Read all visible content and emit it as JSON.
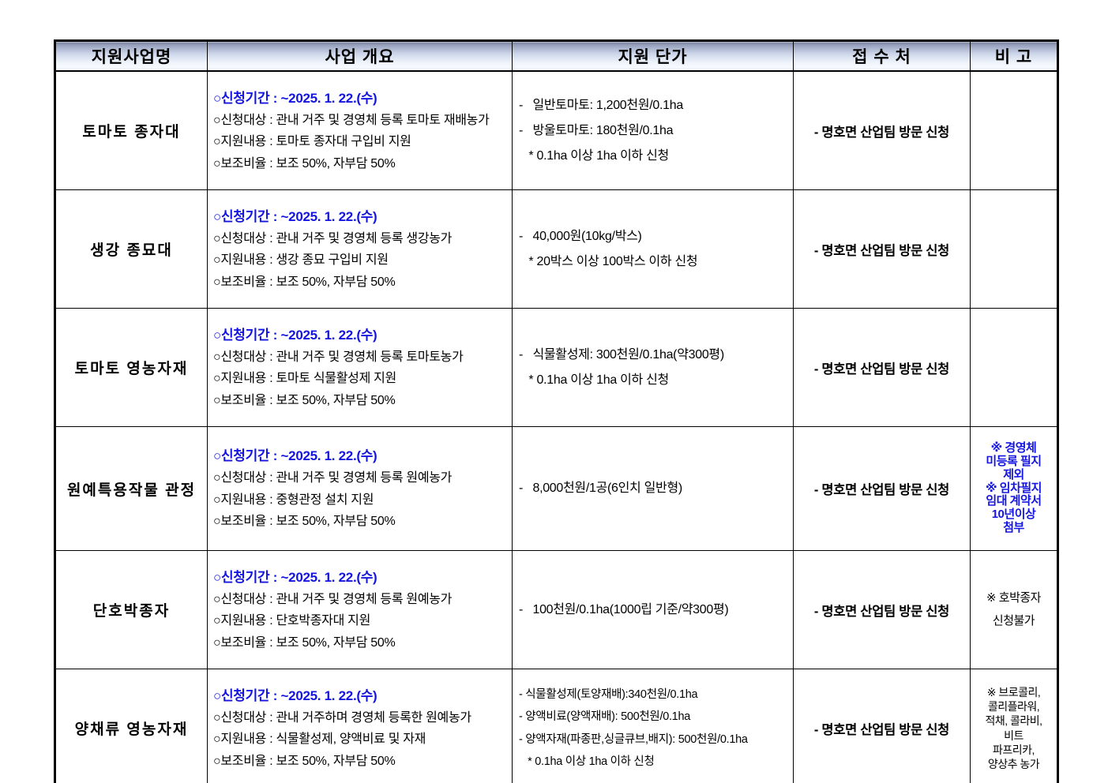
{
  "colors": {
    "accent_blue": "#1414e0",
    "header_gradient_top": "#79839c",
    "header_gradient_bottom": "#e9eef8",
    "border": "#000000"
  },
  "header": {
    "columns": [
      "지원사업명",
      "사업 개요",
      "지원 단가",
      "접 수 처",
      "비 고"
    ]
  },
  "rows": [
    {
      "name": "토마토 종자대",
      "period": "○신청기간 : ~2025. 1. 22.(수)",
      "overview": [
        "○신청대상 : 관내 거주 및 경영체 등록 토마토 재배농가",
        "○지원내용 : 토마토 종자대 구입비 지원",
        "○보조비율 : 보조 50%, 자부담 50%"
      ],
      "price": [
        "-   일반토마토: 1,200천원/0.1ha",
        "-   방울토마토: 180천원/0.1ha",
        "   * 0.1ha 이상 1ha 이하 신청"
      ],
      "office": "- 명호면 산업팀 방문 신청",
      "note": []
    },
    {
      "name": "생강 종묘대",
      "period": "○신청기간 : ~2025. 1. 22.(수)",
      "overview": [
        "○신청대상 : 관내 거주 및 경영체 등록 생강농가",
        "○지원내용 : 생강 종묘 구입비 지원",
        "○보조비율 : 보조 50%, 자부담 50%"
      ],
      "price": [
        "-   40,000원(10kg/박스)",
        "   * 20박스 이상 100박스 이하 신청"
      ],
      "office": "- 명호면 산업팀 방문 신청",
      "note": []
    },
    {
      "name": "토마토 영농자재",
      "period": "○신청기간 : ~2025. 1. 22.(수)",
      "overview": [
        "○신청대상 : 관내 거주 및 경영체 등록 토마토농가",
        "○지원내용 : 토마토 식물활성제 지원",
        "○보조비율 : 보조 50%, 자부담 50%"
      ],
      "price": [
        "-   식물활성제: 300천원/0.1ha(약300평)",
        "   * 0.1ha 이상 1ha 이하 신청"
      ],
      "office": "- 명호면 산업팀 방문 신청",
      "note": []
    },
    {
      "name": "원예특용작물 관정",
      "period": "○신청기간 : ~2025. 1. 22.(수)",
      "overview": [
        "○신청대상 : 관내 거주 및 경영체 등록 원예농가",
        "○지원내용 : 중형관정 설치 지원",
        "○보조비율 : 보조 50%, 자부담 50%"
      ],
      "price": [
        "-   8,000천원/1공(6인치 일반형)"
      ],
      "office": "- 명호면 산업팀 방문 신청",
      "note": [
        "※ 경영체",
        "미등록 필지",
        "제외",
        "※ 임차필지",
        "임대 계약서",
        "10년이상",
        "첨부"
      ]
    },
    {
      "name": "단호박종자",
      "period": "○신청기간 : ~2025. 1. 22.(수)",
      "overview": [
        "○신청대상 : 관내 거주 및 경영체 등록 원예농가",
        "○지원내용 : 단호박종자대 지원",
        "○보조비율 : 보조 50%, 자부담 50%"
      ],
      "price": [
        "-   100천원/0.1ha(1000립 기준/약300평)"
      ],
      "office": "- 명호면 산업팀 방문 신청",
      "note": [
        "※ 호박종자",
        "신청불가"
      ]
    },
    {
      "name": "양채류 영농자재",
      "period": "○신청기간 : ~2025. 1. 22.(수)",
      "overview": [
        "○신청대상 : 관내 거주하며 경영체 등록한 원예농가",
        "○지원내용 : 식물활성제, 양액비료 및 자재",
        "○보조비율 : 보조 50%, 자부담 50%"
      ],
      "price": [
        "- 식물활성제(토양재배):340천원/0.1ha",
        "- 양액비료(양액재배): 500천원/0.1ha",
        "- 양액자재(파종판,싱글큐브,배지): 500천원/0.1ha",
        "   * 0.1ha 이상 1ha 이하 신청"
      ],
      "office": "- 명호면 산업팀 방문 신청",
      "note": [
        "※ 브로콜리,",
        "콜리플라워,",
        "적채, 콜라비,",
        "비트",
        "파프리카,",
        "양상추 농가"
      ]
    }
  ]
}
